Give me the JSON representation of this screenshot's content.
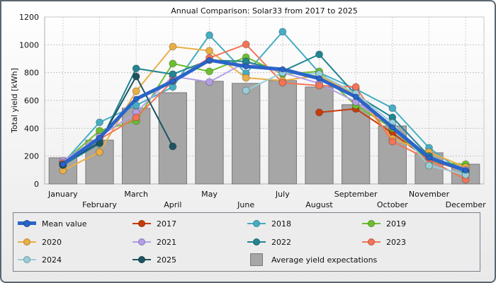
{
  "chart_data": {
    "type": "bar+line",
    "title": "Annual Comparison: Solar33 from 2017 to 2025",
    "xlabel": "",
    "ylabel": "Total yield [kWh]",
    "ylim": [
      0,
      1200
    ],
    "yticks": [
      0,
      200,
      400,
      600,
      800,
      1000,
      1200
    ],
    "grid": true,
    "legend_position": "bottom",
    "categories": [
      "January",
      "February",
      "March",
      "April",
      "May",
      "June",
      "July",
      "August",
      "September",
      "October",
      "November",
      "December"
    ],
    "bars": {
      "name": "Average yield expectations",
      "color": "#a6a6a6",
      "values": [
        188,
        315,
        545,
        656,
        738,
        723,
        743,
        697,
        570,
        417,
        224,
        142
      ]
    },
    "series": [
      {
        "name": "2017",
        "color": "#c83c0c",
        "values": [
          null,
          null,
          null,
          null,
          null,
          null,
          null,
          514,
          540,
          366,
          173,
          92
        ]
      },
      {
        "name": "2018",
        "color": "#45aec4",
        "values": [
          150,
          443,
          565,
          697,
          1069,
          794,
          1094,
          800,
          682,
          545,
          260,
          70
        ]
      },
      {
        "name": "2019",
        "color": "#6cbf30",
        "values": [
          155,
          382,
          453,
          865,
          809,
          911,
          789,
          809,
          565,
          400,
          158,
          142
        ]
      },
      {
        "name": "2020",
        "color": "#eaae45",
        "values": [
          97,
          229,
          667,
          987,
          957,
          763,
          743,
          780,
          640,
          326,
          229,
          120
        ]
      },
      {
        "name": "2021",
        "color": "#b49ee6",
        "values": [
          165,
          340,
          514,
          773,
          733,
          875,
          800,
          723,
          590,
          420,
          190,
          100
        ]
      },
      {
        "name": "2022",
        "color": "#218592",
        "values": [
          135,
          290,
          830,
          789,
          890,
          880,
          810,
          931,
          640,
          478,
          200,
          90
        ]
      },
      {
        "name": "2023",
        "color": "#f47458",
        "values": [
          150,
          320,
          478,
          740,
          906,
          1003,
          728,
          707,
          697,
          305,
          175,
          31
        ]
      },
      {
        "name": "2024",
        "color": "#98ced8",
        "values": [
          null,
          null,
          null,
          null,
          null,
          672,
          800,
          790,
          650,
          438,
          132,
          66
        ]
      },
      {
        "name": "2025",
        "color": "#1e5460",
        "values": [
          140,
          300,
          773,
          270,
          null,
          null,
          null,
          null,
          null,
          null,
          null,
          null
        ]
      }
    ],
    "mean": {
      "name": "Mean value",
      "color": "#2a64c8",
      "values": [
        142,
        331,
        611,
        738,
        890,
        845,
        824,
        758,
        626,
        407,
        188,
        97
      ]
    }
  },
  "legend": {
    "items": [
      {
        "label": "Mean value",
        "key": "mean"
      },
      {
        "label": "2017",
        "key": "2017"
      },
      {
        "label": "2018",
        "key": "2018"
      },
      {
        "label": "2019",
        "key": "2019"
      },
      {
        "label": "2020",
        "key": "2020"
      },
      {
        "label": "2021",
        "key": "2021"
      },
      {
        "label": "2022",
        "key": "2022"
      },
      {
        "label": "2023",
        "key": "2023"
      },
      {
        "label": "2024",
        "key": "2024"
      },
      {
        "label": "2025",
        "key": "2025"
      },
      {
        "label": "Average yield expectations",
        "key": "bars"
      }
    ]
  }
}
